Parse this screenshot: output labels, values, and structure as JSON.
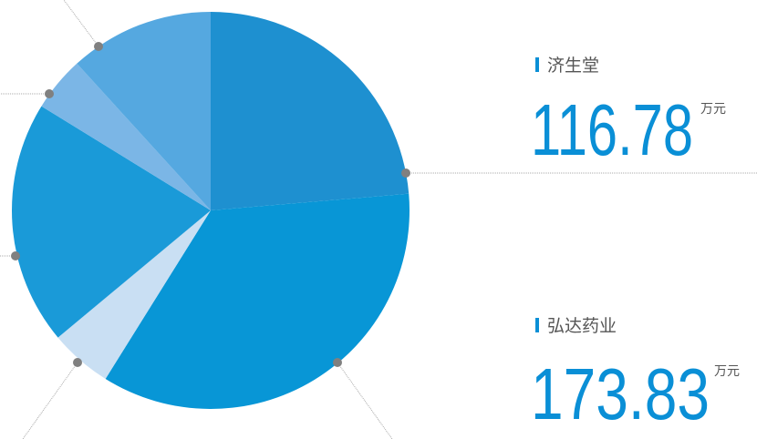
{
  "chart_data": {
    "type": "pie",
    "categories": [
      "济生堂",
      "弘达药业",
      null,
      null,
      null,
      null
    ],
    "values": [
      116.78,
      173.83,
      25,
      98,
      22,
      58
    ],
    "colors": [
      "#1e90d0",
      "#0896d6",
      "#c9dff3",
      "#1a9ad8",
      "#7bb6e6",
      "#55a8e0"
    ],
    "unit": "万元"
  }
}
